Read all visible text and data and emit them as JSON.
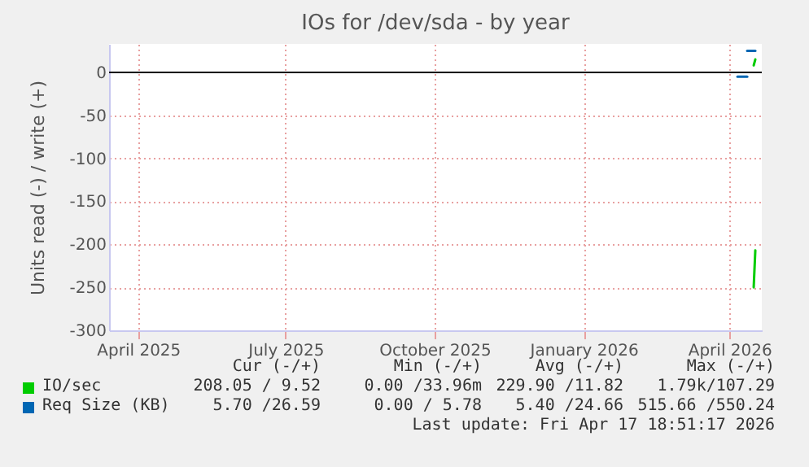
{
  "chart_data": {
    "type": "line",
    "title": "IOs for /dev/sda - by year",
    "ylabel": "Units read (-) / write (+)",
    "x": [
      "2026-04-16",
      "2026-04-17"
    ],
    "series": [
      {
        "name": "IO/sec",
        "color": "#00cc00",
        "values": [
          -250,
          -207
        ]
      },
      {
        "color": "#00cc00",
        "values": [
          8,
          15
        ]
      },
      {
        "name": "Req Size (KB)",
        "color": "#0066b3",
        "x": [
          "2026-04-06",
          "2026-04-12"
        ],
        "values": [
          -5,
          -5
        ]
      },
      {
        "color": "#0066b3",
        "x": [
          "2026-04-12",
          "2026-04-17"
        ],
        "values": [
          25,
          25
        ]
      }
    ],
    "xlim": [
      "2025-03-14",
      "2026-04-21"
    ],
    "xticks": [
      {
        "value": "2025-04-01",
        "label": "April 2025"
      },
      {
        "value": "2025-07-01",
        "label": "July 2025"
      },
      {
        "value": "2025-10-01",
        "label": "October 2025"
      },
      {
        "value": "2026-01-01",
        "label": "January 2026"
      },
      {
        "value": "2026-04-01",
        "label": "April 2026"
      }
    ],
    "ylim": [
      -300,
      33
    ],
    "yticks": [
      -300,
      -250,
      -200,
      -150,
      -100,
      -50,
      0
    ],
    "ref_lines": [
      {
        "axis": "y",
        "value": 0,
        "color": "#000000"
      }
    ],
    "grid": true,
    "legend": "bottom",
    "annotations": [
      "Cur (-/+)",
      "Min (-/+)",
      "Avg (-/+)",
      "Max (-/+)",
      "208.05 / 9.52",
      "0.00 /33.96m",
      "229.90 /11.82",
      "1.79k/107.29",
      "5.70 /26.59",
      "0.00 / 5.78",
      "5.40 /24.66",
      "515.66 /550.24",
      "Last update: Fri Apr 17 18:51:17 2026"
    ]
  }
}
